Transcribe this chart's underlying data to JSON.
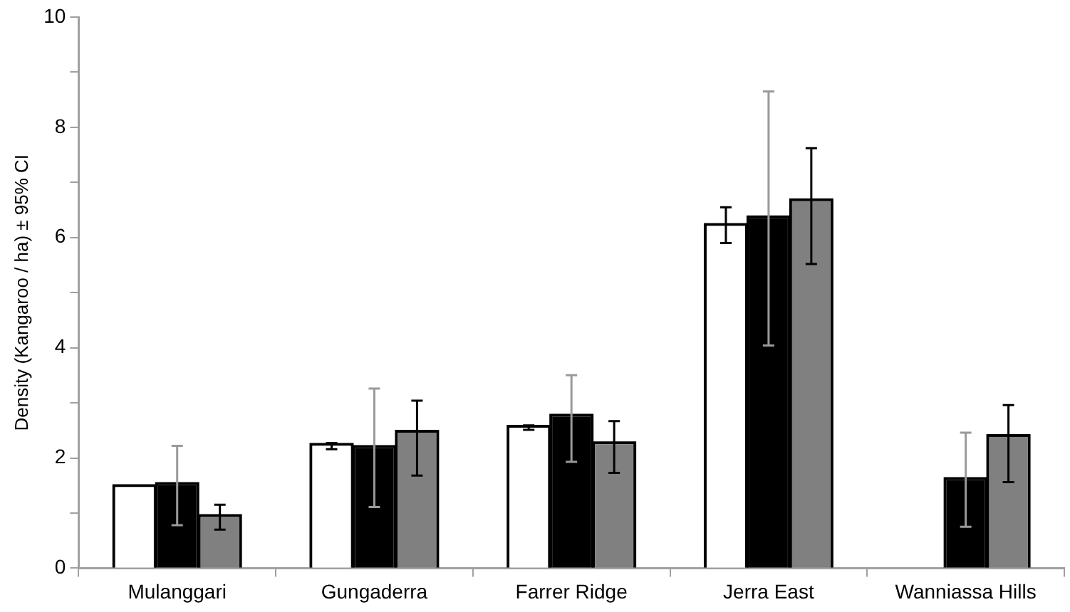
{
  "chart_data": {
    "type": "bar",
    "ylabel": "Density (Kangaroo / ha) ± 95% CI",
    "categories": [
      "Mulanggari",
      "Gungaderra",
      "Farrer Ridge",
      "Jerra East",
      "Wanniassa Hills"
    ],
    "series": [
      {
        "color": "#ffffff",
        "values": [
          1.47,
          2.22,
          2.55,
          6.21,
          null
        ],
        "errors": [
          null,
          [
            2.16,
            2.27
          ],
          [
            2.51,
            2.59
          ],
          [
            5.9,
            6.55
          ],
          null
        ]
      },
      {
        "color": "#000000",
        "values": [
          1.51,
          2.18,
          2.75,
          6.35,
          1.6
        ],
        "errors": [
          [
            0.78,
            2.22
          ],
          [
            1.11,
            3.26
          ],
          [
            1.93,
            3.5
          ],
          [
            4.04,
            8.65
          ],
          [
            0.75,
            2.46
          ]
        ]
      },
      {
        "color": "#808080",
        "values": [
          0.93,
          2.46,
          2.25,
          6.66,
          2.38
        ],
        "errors": [
          [
            0.7,
            1.15
          ],
          [
            1.68,
            3.04
          ],
          [
            1.73,
            2.67
          ],
          [
            5.52,
            7.62
          ],
          [
            1.56,
            2.96
          ]
        ]
      }
    ],
    "ylim": [
      0,
      10
    ],
    "yticks": [
      0,
      {
        "value": 1,
        "label": null
      },
      2,
      {
        "value": 3,
        "label": null
      },
      4,
      {
        "value": 5,
        "label": null
      },
      6,
      {
        "value": 7,
        "label": null
      },
      8,
      {
        "value": 9,
        "label": null
      },
      10
    ],
    "grid": false,
    "legend": false
  }
}
